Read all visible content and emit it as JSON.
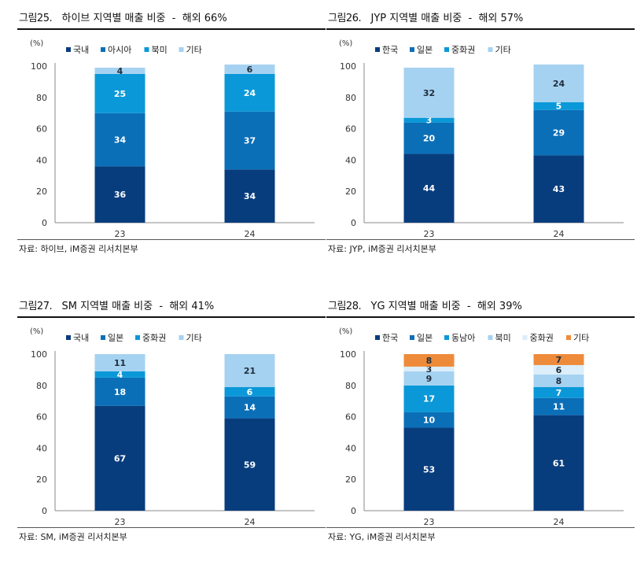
{
  "colors": {
    "navy": "#083d7d",
    "mid_blue": "#0b6fb8",
    "bright_blue": "#0a98d8",
    "light_blue": "#a6d2f1",
    "pale_blue": "#dbeef9",
    "orange": "#ee8b3a"
  },
  "panels": [
    {
      "fig_label": "그림25.",
      "title": "하이브 지역별 매출 비중  -  해외 66%",
      "source": "자료: 하이브, iM증권 리서치본부",
      "chart_data": {
        "type": "bar",
        "stacked": true,
        "categories": [
          "23",
          "24"
        ],
        "ylabel": "(%)",
        "ylim": [
          0,
          100
        ],
        "yticks": [
          0,
          20,
          40,
          60,
          80,
          100
        ],
        "legend_position": "top",
        "series": [
          {
            "name": "국내",
            "color": "#083d7d",
            "label_color": "#ffffff",
            "values": [
              36,
              34
            ]
          },
          {
            "name": "아시아",
            "color": "#0b6fb8",
            "label_color": "#ffffff",
            "values": [
              34,
              37
            ]
          },
          {
            "name": "북미",
            "color": "#0a98d8",
            "label_color": "#ffffff",
            "values": [
              25,
              24
            ]
          },
          {
            "name": "기타",
            "color": "#a6d2f1",
            "label_color": "#1f2d3d",
            "values": [
              4,
              6
            ]
          }
        ]
      }
    },
    {
      "fig_label": "그림26.",
      "title": "JYP 지역별 매출 비중  -  해외 57%",
      "source": "자료: JYP, iM증권 리서치본부",
      "chart_data": {
        "type": "bar",
        "stacked": true,
        "categories": [
          "23",
          "24"
        ],
        "ylabel": "(%)",
        "ylim": [
          0,
          100
        ],
        "yticks": [
          0,
          20,
          40,
          60,
          80,
          100
        ],
        "legend_position": "top",
        "series": [
          {
            "name": "한국",
            "color": "#083d7d",
            "label_color": "#ffffff",
            "values": [
              44,
              43
            ]
          },
          {
            "name": "일본",
            "color": "#0b6fb8",
            "label_color": "#ffffff",
            "values": [
              20,
              29
            ]
          },
          {
            "name": "중화권",
            "color": "#0a98d8",
            "label_color": "#ffffff",
            "values": [
              3,
              5
            ]
          },
          {
            "name": "기타",
            "color": "#a6d2f1",
            "label_color": "#1f2d3d",
            "values": [
              32,
              24
            ]
          }
        ]
      }
    },
    {
      "fig_label": "그림27.",
      "title": "SM 지역별 매출 비중  -  해외 41%",
      "source": "자료: SM, iM증권 리서치본부",
      "chart_data": {
        "type": "bar",
        "stacked": true,
        "categories": [
          "23",
          "24"
        ],
        "ylabel": "(%)",
        "ylim": [
          0,
          100
        ],
        "yticks": [
          0,
          20,
          40,
          60,
          80,
          100
        ],
        "legend_position": "top",
        "series": [
          {
            "name": "국내",
            "color": "#083d7d",
            "label_color": "#ffffff",
            "values": [
              67,
              59
            ]
          },
          {
            "name": "일본",
            "color": "#0b6fb8",
            "label_color": "#ffffff",
            "values": [
              18,
              14
            ]
          },
          {
            "name": "중화권",
            "color": "#0a98d8",
            "label_color": "#ffffff",
            "values": [
              4,
              6
            ]
          },
          {
            "name": "기타",
            "color": "#a6d2f1",
            "label_color": "#1f2d3d",
            "values": [
              11,
              21
            ]
          }
        ]
      }
    },
    {
      "fig_label": "그림28.",
      "title": "YG 지역별 매출 비중  -  해외 39%",
      "source": "자료: YG, iM증권 리서치본부",
      "chart_data": {
        "type": "bar",
        "stacked": true,
        "categories": [
          "23",
          "24"
        ],
        "ylabel": "(%)",
        "ylim": [
          0,
          100
        ],
        "yticks": [
          0,
          20,
          40,
          60,
          80,
          100
        ],
        "legend_position": "top",
        "series": [
          {
            "name": "한국",
            "color": "#083d7d",
            "label_color": "#ffffff",
            "values": [
              53,
              61
            ]
          },
          {
            "name": "일본",
            "color": "#0b6fb8",
            "label_color": "#ffffff",
            "values": [
              10,
              11
            ]
          },
          {
            "name": "동남아",
            "color": "#0a98d8",
            "label_color": "#ffffff",
            "values": [
              17,
              7
            ]
          },
          {
            "name": "북미",
            "color": "#a6d2f1",
            "label_color": "#1f2d3d",
            "values": [
              9,
              8
            ]
          },
          {
            "name": "중화권",
            "color": "#dbeef9",
            "label_color": "#1f2d3d",
            "values": [
              3,
              6
            ]
          },
          {
            "name": "기타",
            "color": "#ee8b3a",
            "label_color": "#1f2d3d",
            "values": [
              8,
              7
            ]
          }
        ]
      }
    }
  ]
}
